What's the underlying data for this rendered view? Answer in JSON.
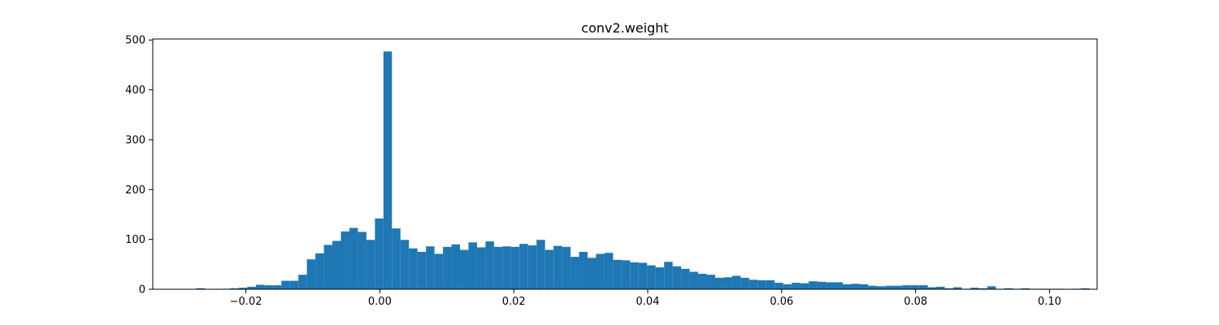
{
  "chart_data": {
    "type": "bar",
    "title": "conv2.weight",
    "xlabel": "",
    "ylabel": "",
    "bin_start": -0.0274,
    "bin_width": 0.00127,
    "values": [
      2,
      0,
      0,
      1,
      2,
      3,
      5,
      9,
      8,
      8,
      17,
      17,
      29,
      60,
      72,
      89,
      97,
      116,
      123,
      115,
      99,
      142,
      477,
      122,
      99,
      82,
      75,
      86,
      71,
      85,
      90,
      79,
      94,
      84,
      96,
      85,
      86,
      85,
      91,
      88,
      99,
      79,
      87,
      85,
      65,
      75,
      63,
      71,
      73,
      59,
      58,
      54,
      53,
      48,
      44,
      55,
      46,
      41,
      35,
      31,
      29,
      23,
      24,
      27,
      23,
      19,
      18,
      18,
      13,
      10,
      13,
      12,
      16,
      15,
      14,
      14,
      10,
      11,
      10,
      7,
      6,
      7,
      7,
      8,
      8,
      8,
      4,
      5,
      2,
      4,
      1,
      3,
      2,
      6,
      1,
      2,
      1,
      2,
      1,
      1,
      1,
      1,
      0,
      1,
      2
    ],
    "xlim": [
      -0.0339,
      0.1071
    ],
    "ylim": [
      0,
      502
    ],
    "xticks": [
      -0.02,
      0.0,
      0.02,
      0.04,
      0.06,
      0.08,
      0.1
    ],
    "xtick_labels": [
      "−0.02",
      "0.00",
      "0.02",
      "0.04",
      "0.06",
      "0.08",
      "0.10"
    ],
    "yticks": [
      0,
      100,
      200,
      300,
      400,
      500
    ],
    "ytick_labels": [
      "0",
      "100",
      "200",
      "300",
      "400",
      "500"
    ],
    "bar_color": "#1f77b4",
    "grid": false,
    "legend": "none"
  }
}
